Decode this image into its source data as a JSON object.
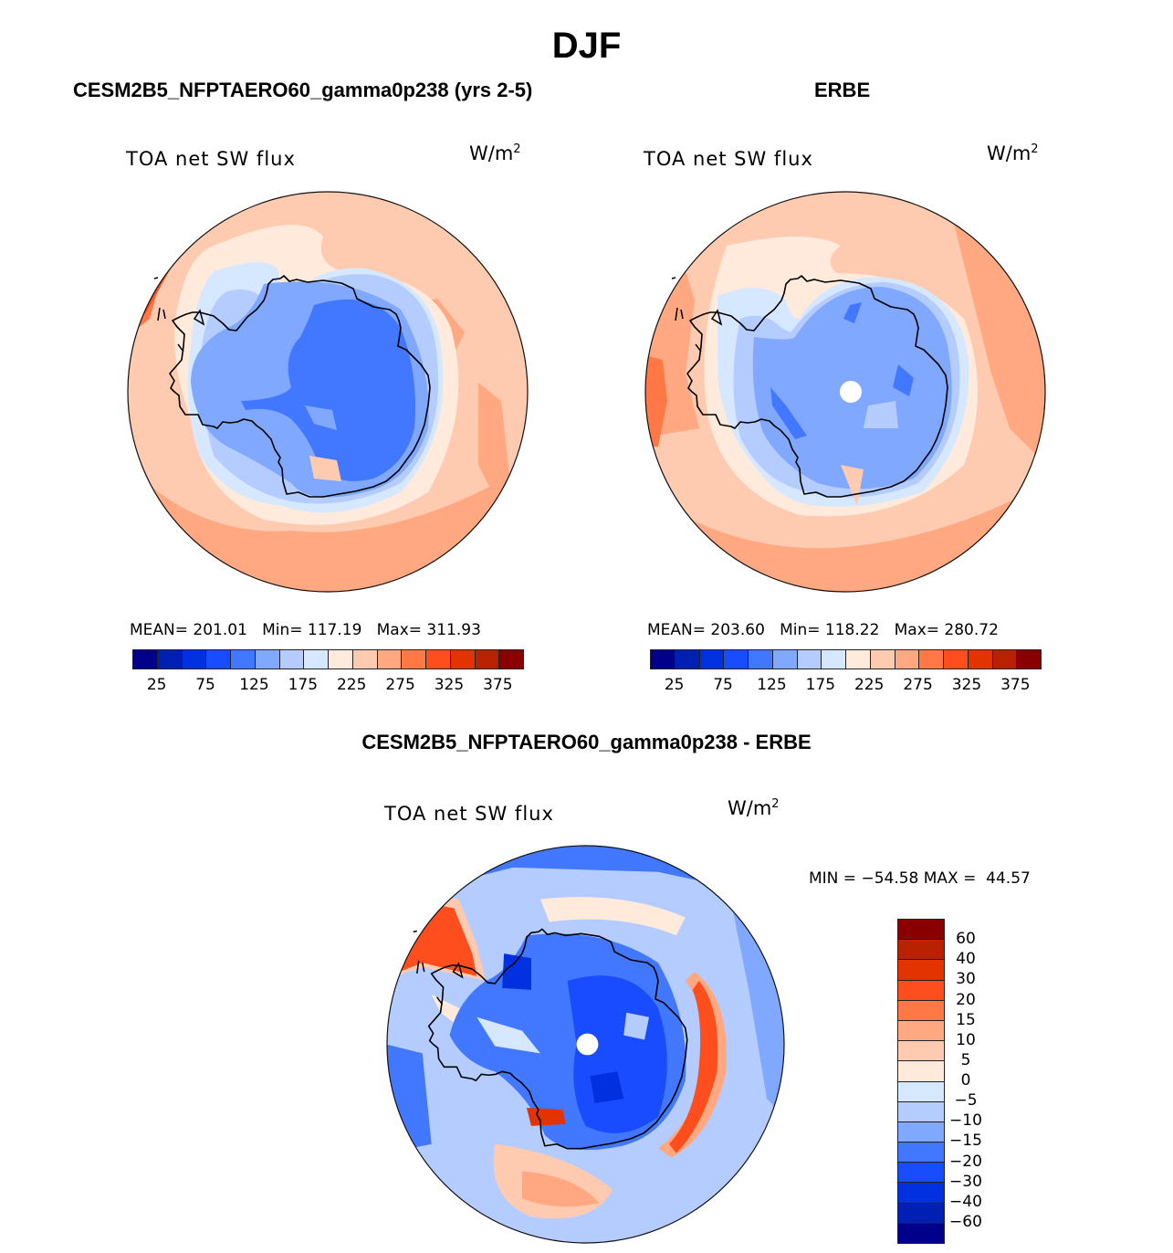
{
  "figure": {
    "title": "DJF",
    "panels": [
      {
        "id": "model",
        "title": "CESM2B5_NFPTAERO60_gamma0p238 (yrs 2-5)",
        "variable": "TOA net SW flux",
        "units": "W/m",
        "units_sup": "2",
        "stats": "MEAN= 201.01   Min= 117.19   Max= 311.93"
      },
      {
        "id": "obs",
        "title": "ERBE",
        "variable": "TOA net SW flux",
        "units": "W/m",
        "units_sup": "2",
        "stats": "MEAN= 203.60   Min= 118.22   Max= 280.72"
      },
      {
        "id": "diff",
        "title": "CESM2B5_NFPTAERO60_gamma0p238 - ERBE",
        "variable": "TOA net SW flux",
        "units": "W/m",
        "units_sup": "2",
        "stats": "MIN = −54.58 MAX =  44.57"
      }
    ]
  },
  "chart_data": [
    {
      "type": "heatmap",
      "projection": "south-polar stereographic",
      "title": "CESM2B5_NFPTAERO60_gamma0p238 (yrs 2-5)",
      "variable": "TOA net SW flux",
      "units": "W/m2",
      "mean": 201.01,
      "min": 117.19,
      "max": 311.93,
      "levels": [
        25,
        50,
        75,
        100,
        125,
        150,
        175,
        200,
        225,
        250,
        275,
        300,
        325,
        350,
        375
      ],
      "colorbar_tick_labels": [
        "25",
        "75",
        "125",
        "175",
        "225",
        "275",
        "325",
        "375"
      ],
      "colorbar_colors": [
        "#00008a",
        "#0020b4",
        "#0030e0",
        "#1a4cff",
        "#4278ff",
        "#80a8ff",
        "#b4ccff",
        "#d6e8ff",
        "#ffeadb",
        "#ffcbb0",
        "#ffa882",
        "#ff7845",
        "#ff4e1e",
        "#e33300",
        "#b82200",
        "#8a0000"
      ],
      "legend_position": "bottom"
    },
    {
      "type": "heatmap",
      "projection": "south-polar stereographic",
      "title": "ERBE",
      "variable": "TOA net SW flux",
      "units": "W/m2",
      "mean": 203.6,
      "min": 118.22,
      "max": 280.72,
      "levels": [
        25,
        50,
        75,
        100,
        125,
        150,
        175,
        200,
        225,
        250,
        275,
        300,
        325,
        350,
        375
      ],
      "colorbar_tick_labels": [
        "25",
        "75",
        "125",
        "175",
        "225",
        "275",
        "325",
        "375"
      ],
      "colorbar_colors": [
        "#00008a",
        "#0020b4",
        "#0030e0",
        "#1a4cff",
        "#4278ff",
        "#80a8ff",
        "#b4ccff",
        "#d6e8ff",
        "#ffeadb",
        "#ffcbb0",
        "#ffa882",
        "#ff7845",
        "#ff4e1e",
        "#e33300",
        "#b82200",
        "#8a0000"
      ],
      "legend_position": "bottom"
    },
    {
      "type": "heatmap",
      "projection": "south-polar stereographic",
      "title": "CESM2B5_NFPTAERO60_gamma0p238 - ERBE",
      "variable": "TOA net SW flux",
      "units": "W/m2",
      "min": -54.58,
      "max": 44.57,
      "levels": [
        -60,
        -40,
        -30,
        -20,
        -15,
        -10,
        -5,
        0,
        5,
        10,
        15,
        20,
        30,
        40,
        60
      ],
      "colorbar_tick_labels": [
        "60",
        "40",
        "30",
        "20",
        "15",
        "10",
        "5",
        "0",
        "−5",
        "−10",
        "−15",
        "−20",
        "−30",
        "−40",
        "−60"
      ],
      "colorbar_colors_top_to_bottom": [
        "#8a0000",
        "#b82200",
        "#e33300",
        "#ff4e1e",
        "#ff7845",
        "#ffa882",
        "#ffcbb0",
        "#ffeadb",
        "#d6e8ff",
        "#b4ccff",
        "#80a8ff",
        "#4278ff",
        "#1a4cff",
        "#0030e0",
        "#0020b4",
        "#00008a"
      ],
      "legend_position": "right"
    }
  ]
}
